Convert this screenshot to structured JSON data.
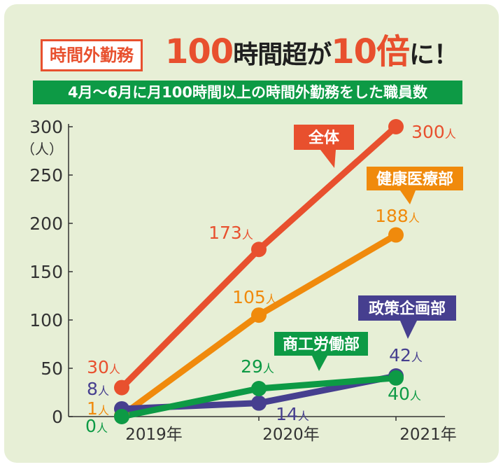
{
  "title": {
    "box_label": "時間外勤務",
    "number1": "100",
    "text1": "時間超が",
    "number2": "10",
    "text2": "倍",
    "text3": "に！"
  },
  "subtitle": "4月～6月に月100時間以上の時間外勤務をした職員数",
  "chart_data": {
    "type": "line",
    "categories": [
      "2019年",
      "2020年",
      "2021年"
    ],
    "ylabel": "（人）",
    "ylim": [
      0,
      300
    ],
    "yticks": [
      0,
      50,
      100,
      150,
      200,
      250,
      300
    ],
    "grid": false,
    "series": [
      {
        "name": "全体",
        "values": [
          30,
          173,
          300
        ],
        "labels": [
          "30人",
          "173人",
          "300人"
        ],
        "color": "#e8502e"
      },
      {
        "name": "健康医療部",
        "values": [
          1,
          105,
          188
        ],
        "labels": [
          "1人",
          "105人",
          "188人"
        ],
        "color": "#f08a0c"
      },
      {
        "name": "政策企画部",
        "values": [
          8,
          14,
          42
        ],
        "labels": [
          "8人",
          "14人",
          "42人"
        ],
        "color": "#463f8f"
      },
      {
        "name": "商工労働部",
        "values": [
          0,
          29,
          40
        ],
        "labels": [
          "0人",
          "29人",
          "40人"
        ],
        "color": "#0d9a45"
      }
    ]
  }
}
